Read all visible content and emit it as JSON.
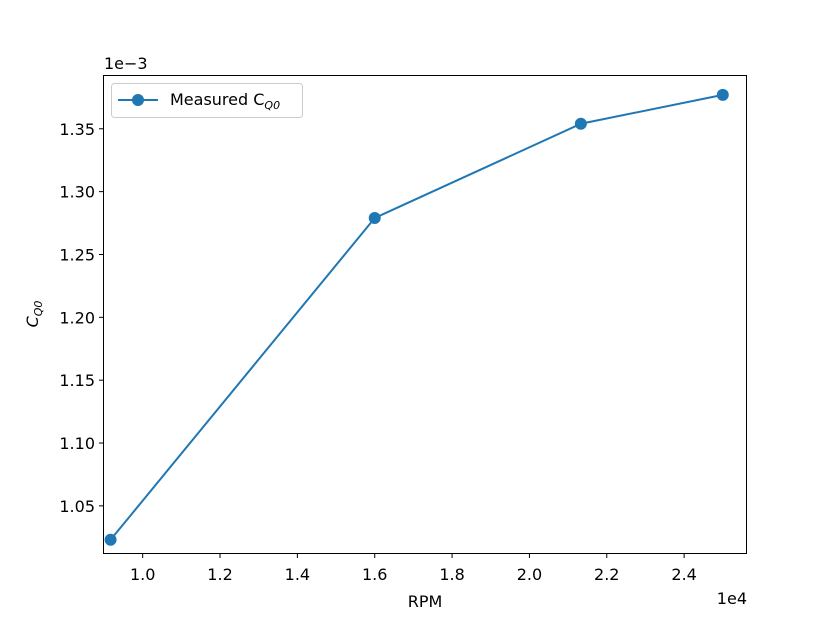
{
  "chart_data": {
    "type": "line",
    "xlabel": "RPM",
    "ylabel_main": "C",
    "ylabel_sub": "Q0",
    "x_multiplier": "1e4",
    "y_multiplier": "1e−3",
    "xlim": [
      0.9,
      2.56
    ],
    "ylim": [
      1.0125,
      1.392
    ],
    "x_ticks": [
      {
        "value": 1.0,
        "label": "1.0"
      },
      {
        "value": 1.2,
        "label": "1.2"
      },
      {
        "value": 1.4,
        "label": "1.4"
      },
      {
        "value": 1.6,
        "label": "1.6"
      },
      {
        "value": 1.8,
        "label": "1.8"
      },
      {
        "value": 2.0,
        "label": "2.0"
      },
      {
        "value": 2.2,
        "label": "2.2"
      },
      {
        "value": 2.4,
        "label": "2.4"
      }
    ],
    "y_ticks": [
      {
        "value": 1.05,
        "label": "1.05"
      },
      {
        "value": 1.1,
        "label": "1.10"
      },
      {
        "value": 1.15,
        "label": "1.15"
      },
      {
        "value": 1.2,
        "label": "1.20"
      },
      {
        "value": 1.25,
        "label": "1.25"
      },
      {
        "value": 1.3,
        "label": "1.30"
      },
      {
        "value": 1.35,
        "label": "1.35"
      }
    ],
    "grid": false,
    "legend_position": "upper-left",
    "series": [
      {
        "legend_main": "Measured C",
        "legend_sub": "Q0",
        "color": "#1f77b4",
        "marker": "circle",
        "x": [
          0.917,
          1.6,
          2.133,
          2.5
        ],
        "y": [
          1.023,
          1.279,
          1.354,
          1.377
        ]
      }
    ]
  }
}
